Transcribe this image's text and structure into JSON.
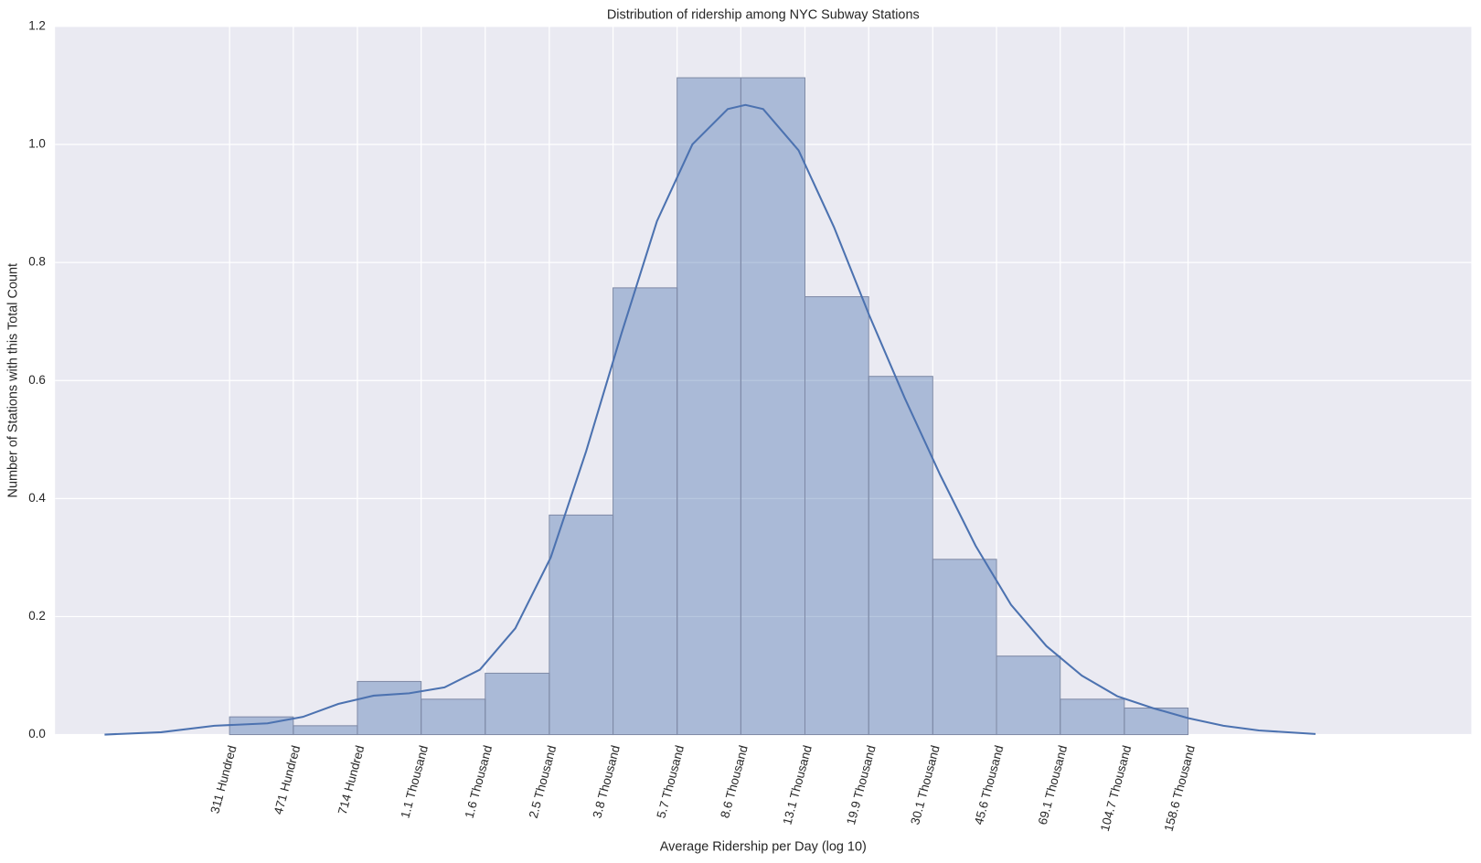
{
  "chart_data": {
    "type": "histogram",
    "title": "Distribution of ridership among NYC Subway Stations",
    "xlabel": "Average Ridership per Day (log 10)",
    "ylabel": "Number of Stations with this Total Count",
    "bins": [
      2.493,
      2.673,
      2.854,
      3.034,
      3.215,
      3.396,
      3.576,
      3.757,
      3.937,
      4.118,
      4.298,
      4.479,
      4.659,
      4.839,
      5.02,
      5.2
    ],
    "values": [
      0.03,
      0.015,
      0.09,
      0.06,
      0.104,
      0.372,
      0.757,
      1.113,
      1.113,
      0.742,
      0.607,
      0.297,
      0.133,
      0.06,
      0.045
    ],
    "color": "#4c72b0",
    "kde": {
      "color": "#4c72b0",
      "x": [
        2.14,
        2.3,
        2.45,
        2.6,
        2.7,
        2.8,
        2.9,
        3.0,
        3.1,
        3.2,
        3.3,
        3.4,
        3.5,
        3.6,
        3.7,
        3.8,
        3.9,
        3.95,
        4.0,
        4.1,
        4.2,
        4.3,
        4.4,
        4.5,
        4.6,
        4.7,
        4.8,
        4.9,
        5.0,
        5.1,
        5.2,
        5.3,
        5.4,
        5.56
      ],
      "values": [
        0.0,
        0.004,
        0.015,
        0.019,
        0.03,
        0.052,
        0.066,
        0.07,
        0.08,
        0.11,
        0.18,
        0.3,
        0.48,
        0.68,
        0.87,
        1.0,
        1.06,
        1.067,
        1.06,
        0.99,
        0.86,
        0.71,
        0.57,
        0.44,
        0.32,
        0.22,
        0.15,
        0.1,
        0.065,
        0.045,
        0.028,
        0.015,
        0.007,
        0.001
      ]
    },
    "xlim": [
      2,
      6
    ],
    "ylim": [
      0,
      1.2
    ],
    "xticks": [
      {
        "value": 2.493,
        "label": "311 Hundred"
      },
      {
        "value": 2.673,
        "label": "471 Hundred"
      },
      {
        "value": 2.854,
        "label": "714 Hundred"
      },
      {
        "value": 3.034,
        "label": "1.1 Thousand"
      },
      {
        "value": 3.215,
        "label": "1.6 Thousand"
      },
      {
        "value": 3.396,
        "label": "2.5 Thousand"
      },
      {
        "value": 3.576,
        "label": "3.8 Thousand"
      },
      {
        "value": 3.757,
        "label": "5.7 Thousand"
      },
      {
        "value": 3.937,
        "label": "8.6 Thousand"
      },
      {
        "value": 4.118,
        "label": "13.1 Thousand"
      },
      {
        "value": 4.298,
        "label": "19.9 Thousand"
      },
      {
        "value": 4.479,
        "label": "30.1 Thousand"
      },
      {
        "value": 4.659,
        "label": "45.6 Thousand"
      },
      {
        "value": 4.839,
        "label": "69.1 Thousand"
      },
      {
        "value": 5.02,
        "label": "104.7 Thousand"
      },
      {
        "value": 5.2,
        "label": "158.6 Thousand"
      }
    ],
    "yticks": [
      {
        "value": 0,
        "label": "0.0"
      },
      {
        "value": 0.2,
        "label": "0.2"
      },
      {
        "value": 0.4,
        "label": "0.4"
      },
      {
        "value": 0.6,
        "label": "0.6"
      },
      {
        "value": 0.8,
        "label": "0.8"
      },
      {
        "value": 1.0,
        "label": "1.0"
      },
      {
        "value": 1.2,
        "label": "1.2"
      }
    ],
    "grid": true
  }
}
